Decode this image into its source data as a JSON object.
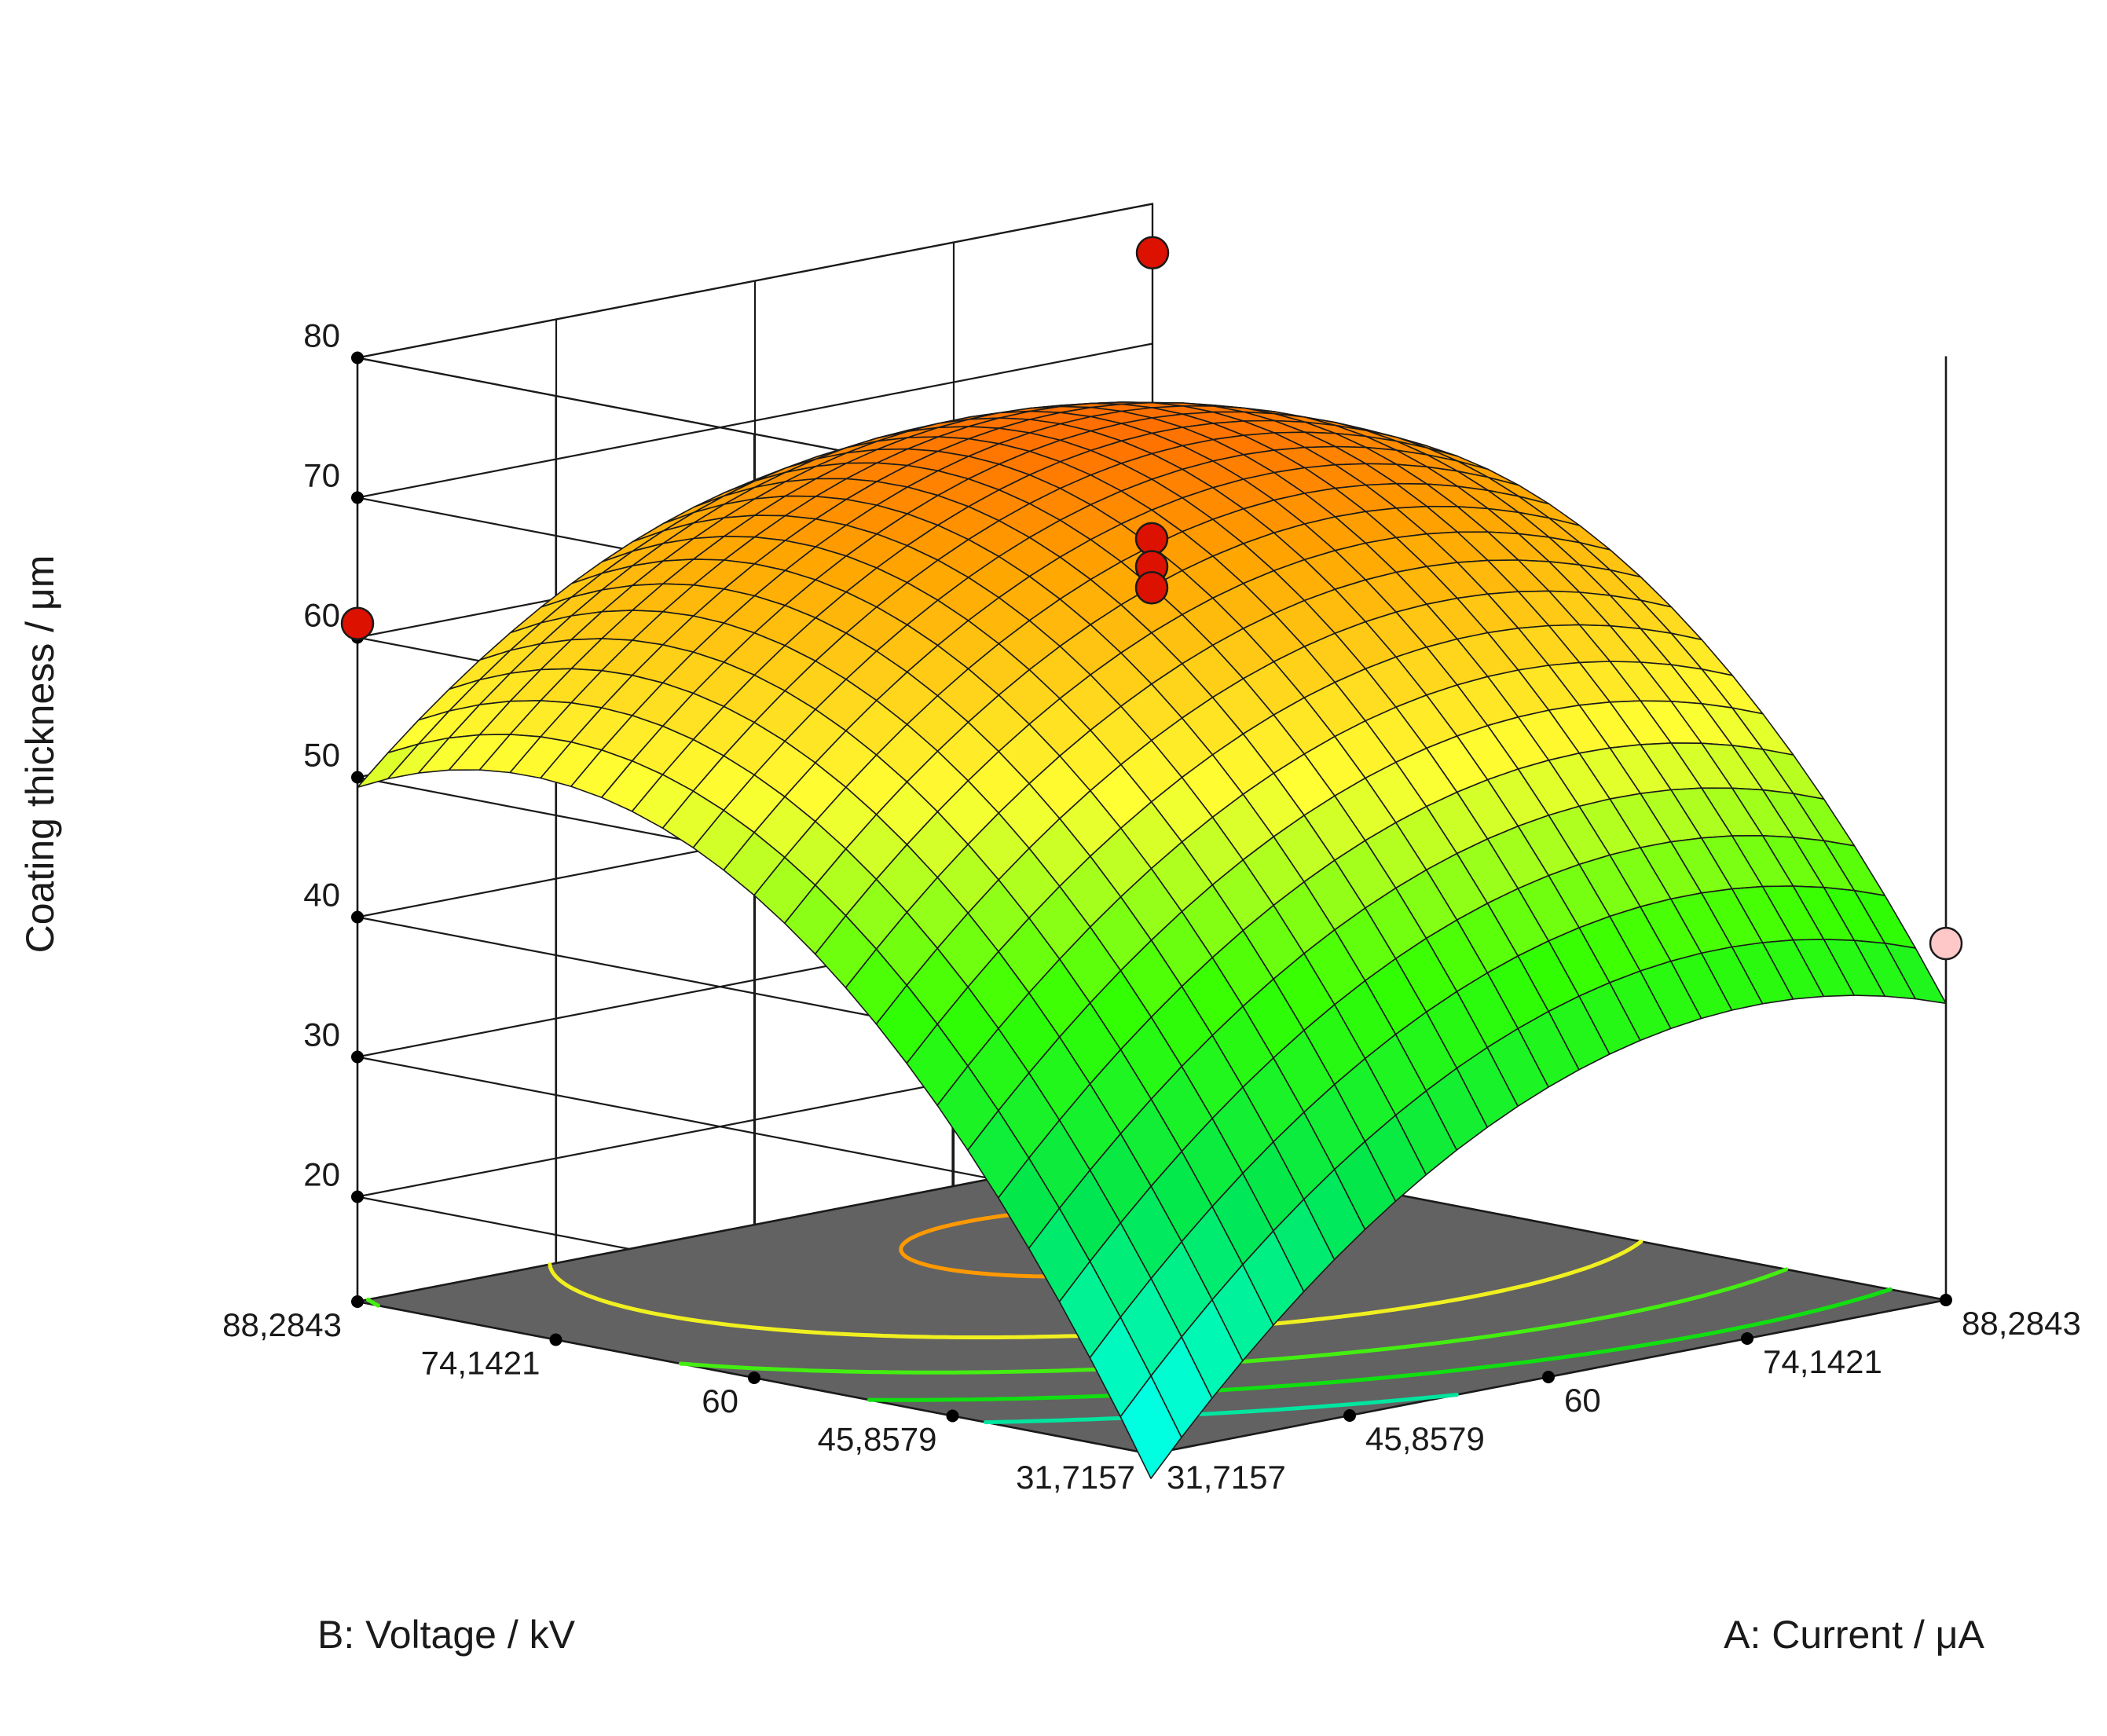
{
  "chart_data": {
    "type": "surface3d",
    "zlabel": "Coating thickness / μm",
    "xlabel": "A: Current / μA",
    "ylabel": "B: Voltage / kV",
    "x_ticks": [
      "31,7157",
      "45,8579",
      "60",
      "74,1421",
      "88,2843"
    ],
    "y_ticks": [
      "31,7157",
      "45,8579",
      "60",
      "74,1421",
      "88,2843"
    ],
    "z_ticks": [
      "20",
      "30",
      "40",
      "50",
      "60",
      "70",
      "80"
    ],
    "x_range": [
      31.7157,
      88.2843
    ],
    "y_range": [
      31.7157,
      88.2843
    ],
    "z_range": [
      20,
      80
    ],
    "grid": true,
    "floor_color": "#626262",
    "surface_colors": [
      "#00ffe0",
      "#00e650",
      "#33ff00",
      "#ffff33",
      "#ffa500",
      "#ff3300"
    ],
    "surface_model": {
      "description": "fitted quadratic response surface z(A,B)",
      "intercept": 66.5,
      "A": 6.0,
      "B": 11.5,
      "AB": -1.5,
      "A2": -5.5,
      "B2": -8.5
    },
    "contour_levels": [
      {
        "z": 30,
        "color": "#00e5a0"
      },
      {
        "z": 40,
        "color": "#10e010"
      },
      {
        "z": 50,
        "color": "#44ee11"
      },
      {
        "z": 60,
        "color": "#f0f020"
      },
      {
        "z": 70,
        "color": "#ff9900"
      }
    ],
    "design_points": [
      {
        "A": 60,
        "B": 60,
        "z": 67.0,
        "above": true
      },
      {
        "A": 60,
        "B": 60,
        "z": 65.0,
        "above": true
      },
      {
        "A": 60,
        "B": 60,
        "z": 63.5,
        "above": true
      },
      {
        "A": 88.2843,
        "B": 88.2843,
        "z": 76.5,
        "above": true
      },
      {
        "A": 31.7157,
        "B": 88.2843,
        "z": 61.0,
        "above": true
      },
      {
        "A": 88.2843,
        "B": 31.7157,
        "z": 38.0,
        "above": false
      },
      {
        "A": 31.7157,
        "B": 31.7157,
        "z": 19.0,
        "above": false
      }
    ],
    "point_colors": {
      "above": "#dd1100",
      "below": "#ffc8c8"
    }
  }
}
